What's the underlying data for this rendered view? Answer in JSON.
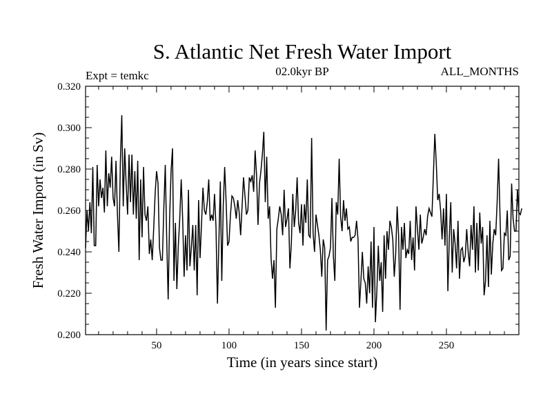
{
  "chart_data": {
    "type": "line",
    "title": "S. Atlantic Net Fresh Water Import",
    "subtitle_left": "Expt = temkc",
    "subtitle_center": "02.0kyr BP",
    "subtitle_right": "ALL_MONTHS",
    "xlabel": "Time (in years since start)",
    "ylabel": "Fresh Water Import (in Sv)",
    "xlim": [
      1,
      300
    ],
    "ylim": [
      0.2,
      0.32
    ],
    "x_ticks": [
      50,
      100,
      150,
      200,
      250
    ],
    "x_tick_labels": [
      "50",
      "100",
      "150",
      "200",
      "250"
    ],
    "y_ticks": [
      0.2,
      0.22,
      0.24,
      0.26,
      0.28,
      0.3,
      0.32
    ],
    "y_tick_labels": [
      "0.200",
      "0.220",
      "0.240",
      "0.260",
      "0.280",
      "0.300",
      "0.320"
    ],
    "series": [
      {
        "name": "fresh water import",
        "x_start": 1,
        "x_step": 1,
        "values": [
          0.242,
          0.26,
          0.25,
          0.264,
          0.249,
          0.281,
          0.243,
          0.243,
          0.282,
          0.262,
          0.275,
          0.266,
          0.271,
          0.259,
          0.289,
          0.262,
          0.278,
          0.271,
          0.286,
          0.266,
          0.262,
          0.284,
          0.258,
          0.24,
          0.283,
          0.306,
          0.262,
          0.29,
          0.273,
          0.258,
          0.287,
          0.264,
          0.287,
          0.258,
          0.279,
          0.256,
          0.284,
          0.236,
          0.275,
          0.247,
          0.281,
          0.258,
          0.255,
          0.262,
          0.239,
          0.246,
          0.236,
          0.251,
          0.268,
          0.279,
          0.273,
          0.242,
          0.236,
          0.236,
          0.261,
          0.282,
          0.246,
          0.217,
          0.256,
          0.279,
          0.29,
          0.226,
          0.254,
          0.222,
          0.243,
          0.256,
          0.275,
          0.256,
          0.228,
          0.248,
          0.231,
          0.27,
          0.233,
          0.242,
          0.253,
          0.231,
          0.253,
          0.219,
          0.265,
          0.237,
          0.253,
          0.271,
          0.26,
          0.258,
          0.264,
          0.275,
          0.255,
          0.258,
          0.255,
          0.268,
          0.252,
          0.215,
          0.245,
          0.274,
          0.226,
          0.262,
          0.281,
          0.264,
          0.243,
          0.245,
          0.258,
          0.267,
          0.266,
          0.262,
          0.256,
          0.265,
          0.259,
          0.248,
          0.262,
          0.276,
          0.267,
          0.258,
          0.26,
          0.276,
          0.274,
          0.277,
          0.269,
          0.289,
          0.277,
          0.253,
          0.273,
          0.279,
          0.287,
          0.298,
          0.264,
          0.286,
          0.256,
          0.262,
          0.237,
          0.227,
          0.236,
          0.213,
          0.251,
          0.256,
          0.262,
          0.258,
          0.248,
          0.27,
          0.252,
          0.256,
          0.261,
          0.232,
          0.244,
          0.268,
          0.252,
          0.26,
          0.276,
          0.254,
          0.249,
          0.263,
          0.243,
          0.263,
          0.254,
          0.275,
          0.248,
          0.247,
          0.295,
          0.249,
          0.24,
          0.258,
          0.253,
          0.248,
          0.241,
          0.228,
          0.246,
          0.242,
          0.202,
          0.236,
          0.238,
          0.242,
          0.266,
          0.238,
          0.226,
          0.264,
          0.258,
          0.285,
          0.257,
          0.25,
          0.265,
          0.255,
          0.261,
          0.251,
          0.252,
          0.245,
          0.247,
          0.247,
          0.248,
          0.255,
          0.246,
          0.213,
          0.226,
          0.24,
          0.227,
          0.225,
          0.215,
          0.233,
          0.22,
          0.245,
          0.213,
          0.252,
          0.206,
          0.221,
          0.243,
          0.226,
          0.235,
          0.211,
          0.248,
          0.227,
          0.25,
          0.241,
          0.255,
          0.252,
          0.246,
          0.228,
          0.239,
          0.262,
          0.248,
          0.212,
          0.252,
          0.241,
          0.254,
          0.237,
          0.241,
          0.239,
          0.255,
          0.236,
          0.247,
          0.231,
          0.262,
          0.251,
          0.241,
          0.258,
          0.244,
          0.247,
          0.251,
          0.248,
          0.257,
          0.261,
          0.259,
          0.257,
          0.277,
          0.297,
          0.283,
          0.265,
          0.268,
          0.26,
          0.246,
          0.261,
          0.243,
          0.268,
          0.221,
          0.247,
          0.264,
          0.23,
          0.251,
          0.244,
          0.232,
          0.255,
          0.227,
          0.241,
          0.242,
          0.235,
          0.238,
          0.251,
          0.24,
          0.233,
          0.253,
          0.241,
          0.262,
          0.23,
          0.254,
          0.231,
          0.259,
          0.244,
          0.252,
          0.219,
          0.226,
          0.248,
          0.223,
          0.255,
          0.229,
          0.244,
          0.251,
          0.248,
          0.264,
          0.285,
          0.257,
          0.231,
          0.232,
          0.249,
          0.248,
          0.26,
          0.236,
          0.238,
          0.273,
          0.256,
          0.25,
          0.25,
          0.27,
          0.259,
          0.258,
          0.261
        ]
      }
    ]
  }
}
